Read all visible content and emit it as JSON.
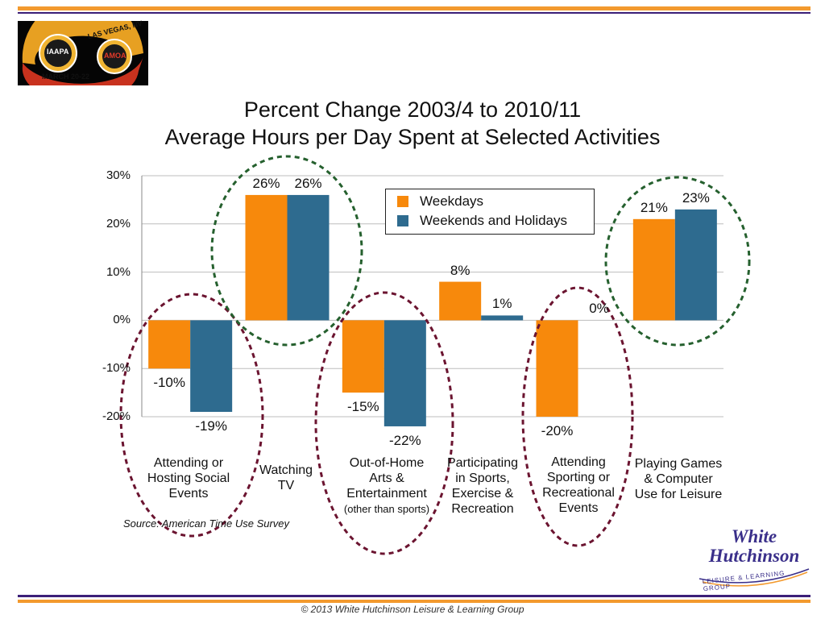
{
  "colors": {
    "weekdays": "#f7890c",
    "weekends": "#2e6b8f",
    "orange_rule": "#f39a2e",
    "purple_rule": "#3b1f78",
    "red_circle": "#6b1430",
    "green_circle": "#25602e"
  },
  "logos": {
    "event_seal_text": [
      "IAAPA",
      "AMOA",
      "LAS VEGAS, NV",
      "MARCH 20-22"
    ],
    "company_logo_line1": "White",
    "company_logo_line2": "Hutchinson",
    "company_logo_tagline": "LEISURE & LEARNING GROUP"
  },
  "chart_data": {
    "type": "bar",
    "title": "Percent Change 2003/4 to 2010/11",
    "subtitle": "Average Hours per Day Spent at Selected Activities",
    "categories": [
      [
        "Attending or",
        "Hosting Social",
        "Events"
      ],
      [
        "Watching",
        "TV"
      ],
      [
        "Out-of-Home",
        "Arts &",
        "Entertainment",
        "(other than sports)"
      ],
      [
        "Participating",
        "in Sports,",
        "Exercise &",
        "Recreation"
      ],
      [
        "Attending",
        "Sporting or",
        "Recreational",
        "Events"
      ],
      [
        "Playing Games",
        "& Computer",
        "Use for Leisure"
      ]
    ],
    "series": [
      {
        "name": "Weekdays",
        "values": [
          -10,
          26,
          -15,
          8,
          -20,
          21
        ]
      },
      {
        "name": "Weekends and Holidays",
        "values": [
          -19,
          26,
          -22,
          1,
          0,
          23
        ]
      }
    ],
    "data_labels": [
      [
        "-10%",
        "26%",
        "-15%",
        "8%",
        "-20%",
        "21%"
      ],
      [
        "-19%",
        "26%",
        "-22%",
        "1%",
        "0%",
        "23%"
      ]
    ],
    "y_ticks": [
      "30%",
      "20%",
      "10%",
      "0%",
      "-10%",
      "-20%"
    ],
    "y_tick_values": [
      30,
      20,
      10,
      0,
      -10,
      -20
    ],
    "ylim": [
      -20,
      30
    ],
    "xlabel": "",
    "ylabel": "",
    "grid": true,
    "legend_position": "top-center",
    "highlight_circles": [
      {
        "category_index": 0,
        "color": "red"
      },
      {
        "category_index": 1,
        "color": "green"
      },
      {
        "category_index": 2,
        "color": "red"
      },
      {
        "category_index": 4,
        "color": "red"
      },
      {
        "category_index": 5,
        "color": "green"
      }
    ]
  },
  "source_note": "Source: American Time Use Survey",
  "footer": "© 2013 White Hutchinson Leisure & Learning Group"
}
